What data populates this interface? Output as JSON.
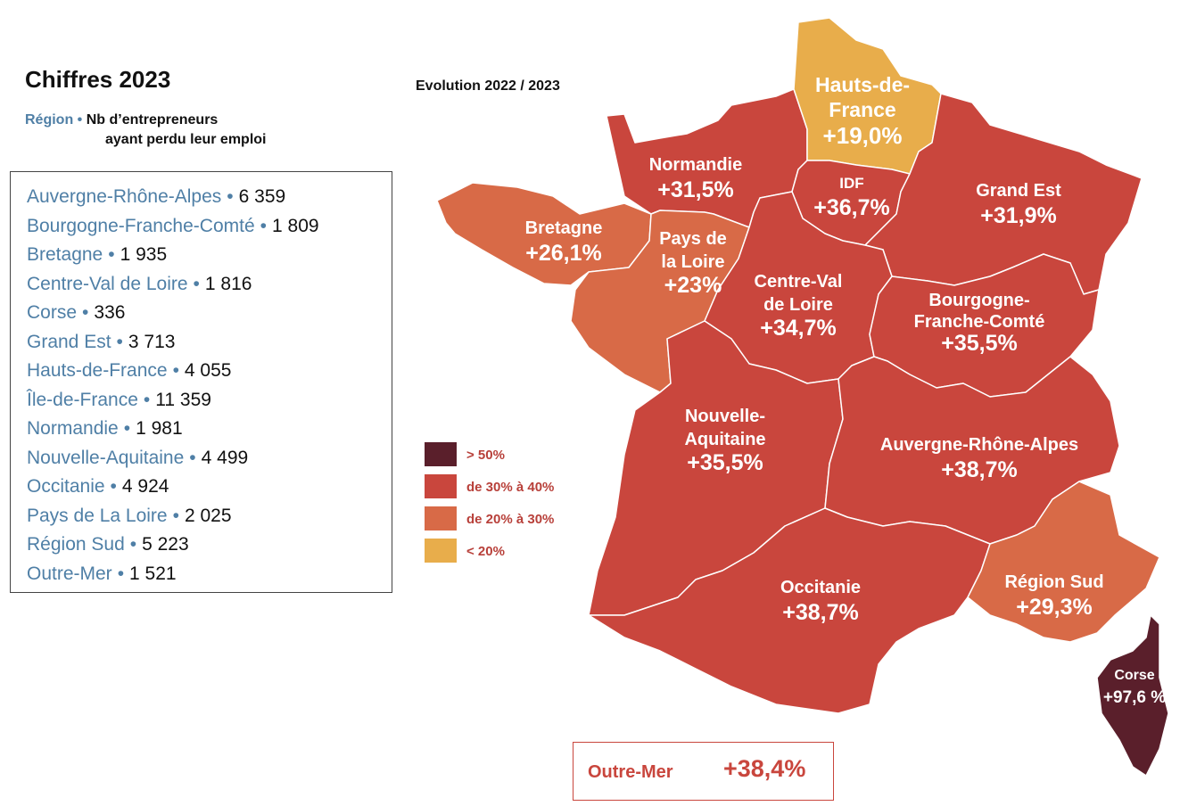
{
  "title": "Chiffres 2023",
  "subtitle": {
    "region_label": "Région",
    "separator": "•",
    "desc_line1": "Nb d’entrepreneurs",
    "desc_line2": "ayant perdu leur emploi"
  },
  "evolution_label": "Evolution 2022 / 2023",
  "colors": {
    "above_50": "#5a1f2b",
    "30_40": "#c9463d",
    "20_30": "#d86a47",
    "below_20": "#e8ad4b",
    "region_blue": "#4f7fa6"
  },
  "legend": [
    {
      "label": "> 50%",
      "color": "#5a1f2b"
    },
    {
      "label": "de 30% à 40%",
      "color": "#c9463d"
    },
    {
      "label": "de 20% à 30%",
      "color": "#d86a47"
    },
    {
      "label": "< 20%",
      "color": "#e8ad4b"
    }
  ],
  "region_counts": [
    {
      "name": "Auvergne-Rhône-Alpes",
      "value": "6 359"
    },
    {
      "name": "Bourgogne-Franche-Comté",
      "value": "1 809"
    },
    {
      "name": "Bretagne",
      "value": "1 935"
    },
    {
      "name": "Centre-Val de Loire",
      "value": "1 816"
    },
    {
      "name": "Corse",
      "value": "336"
    },
    {
      "name": "Grand Est",
      "value": "3 713"
    },
    {
      "name": "Hauts-de-France",
      "value": "4 055"
    },
    {
      "name": "Île-de-France",
      "value": "11 359"
    },
    {
      "name": "Normandie",
      "value": "1 981"
    },
    {
      "name": "Nouvelle-Aquitaine",
      "value": "4 499"
    },
    {
      "name": "Occitanie",
      "value": "4 924"
    },
    {
      "name": "Pays de La Loire",
      "value": "2 025"
    },
    {
      "name": "Région Sud",
      "value": "5 223"
    },
    {
      "name": "Outre-Mer",
      "value": "1 521"
    }
  ],
  "map_regions": [
    {
      "key": "hdf",
      "name_lines": [
        "Hauts-de-",
        "France"
      ],
      "evolution": "+19,0%",
      "color": "#e8ad4b"
    },
    {
      "key": "nor",
      "name_lines": [
        "Normandie"
      ],
      "evolution": "+31,5%",
      "color": "#c9463d"
    },
    {
      "key": "idf",
      "name_lines": [
        "IDF"
      ],
      "evolution": "+36,7%",
      "color": "#c9463d"
    },
    {
      "key": "ges",
      "name_lines": [
        "Grand Est"
      ],
      "evolution": "+31,9%",
      "color": "#c9463d"
    },
    {
      "key": "bre",
      "name_lines": [
        "Bretagne"
      ],
      "evolution": "+26,1%",
      "color": "#d86a47"
    },
    {
      "key": "pdl",
      "name_lines": [
        "Pays de",
        "la Loire"
      ],
      "evolution": "+23%",
      "color": "#d86a47"
    },
    {
      "key": "cvl",
      "name_lines": [
        "Centre-Val",
        "de Loire"
      ],
      "evolution": "+34,7%",
      "color": "#c9463d"
    },
    {
      "key": "bfc",
      "name_lines": [
        "Bourgogne-",
        "Franche-Comté"
      ],
      "evolution": "+35,5%",
      "color": "#c9463d"
    },
    {
      "key": "naq",
      "name_lines": [
        "Nouvelle-",
        "Aquitaine"
      ],
      "evolution": "+35,5%",
      "color": "#c9463d"
    },
    {
      "key": "ara",
      "name_lines": [
        "Auvergne-Rhône-Alpes"
      ],
      "evolution": "+38,7%",
      "color": "#c9463d"
    },
    {
      "key": "occ",
      "name_lines": [
        "Occitanie"
      ],
      "evolution": "+38,7%",
      "color": "#c9463d"
    },
    {
      "key": "sud",
      "name_lines": [
        "Région Sud"
      ],
      "evolution": "+29,3%",
      "color": "#d86a47"
    },
    {
      "key": "cor",
      "name_lines": [
        "Corse"
      ],
      "evolution": "+97,6 %",
      "color": "#5a1f2b"
    }
  ],
  "outre_mer": {
    "name": "Outre-Mer",
    "evolution": "+38,4%"
  }
}
